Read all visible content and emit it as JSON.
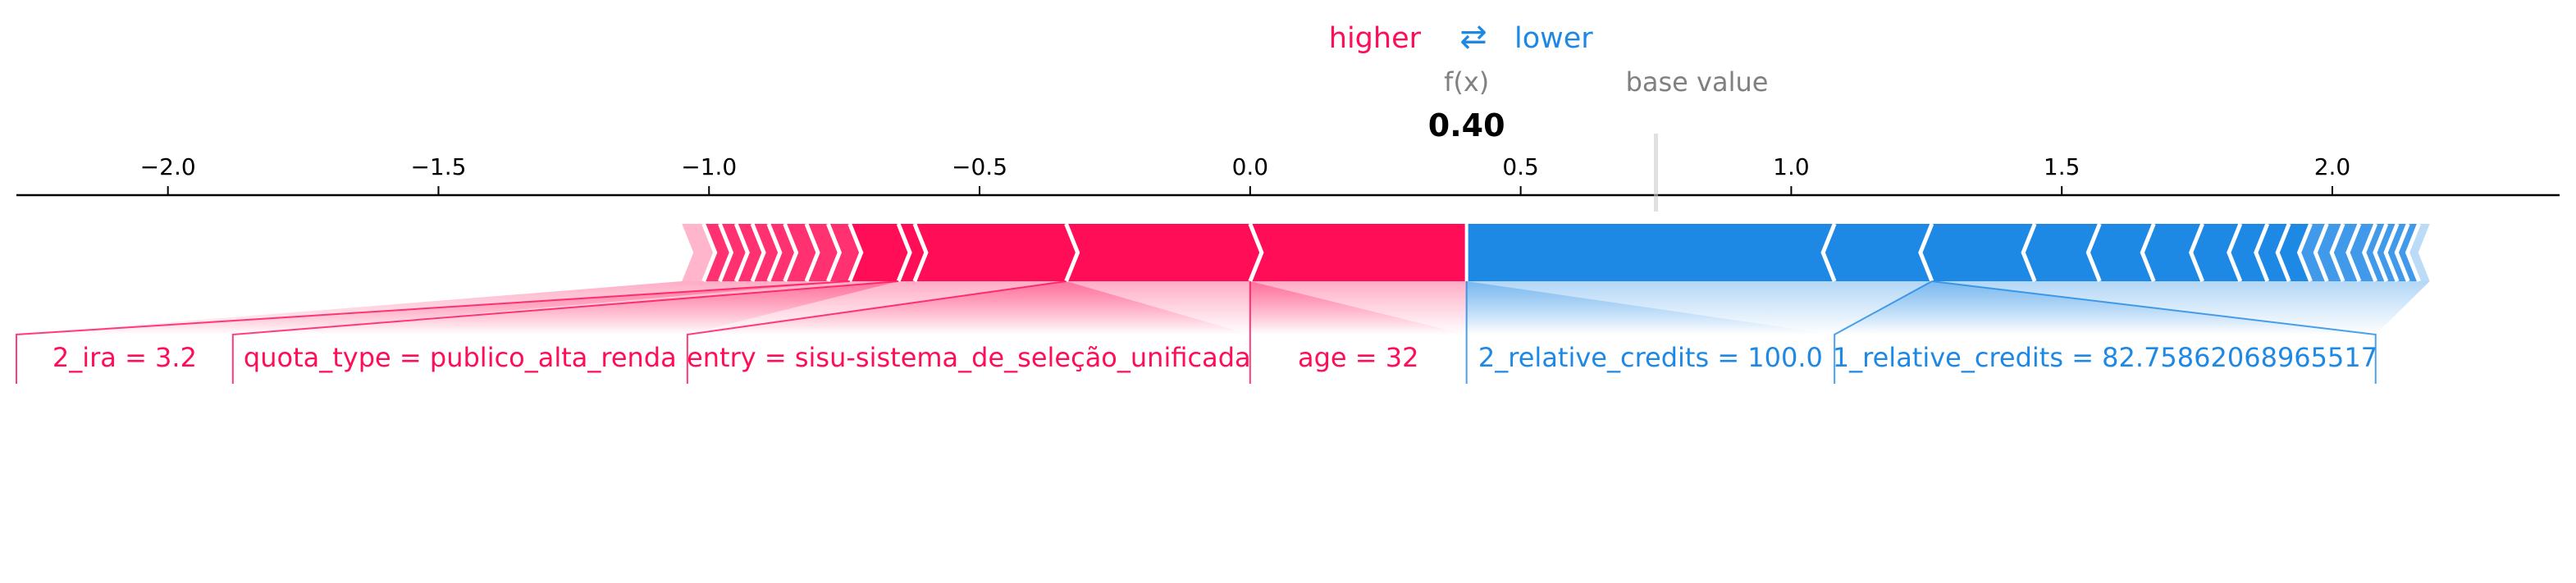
{
  "chart_data": {
    "type": "force",
    "legend": {
      "higher_label": "higher",
      "lower_label": "lower",
      "arrow_glyph": "⇄",
      "higher_color": "#ff0d57",
      "lower_color": "#1e88e5"
    },
    "output": {
      "label": "f(x)",
      "value": 0.4,
      "value_text": "0.40"
    },
    "base": {
      "label": "base value",
      "value": 0.75
    },
    "x_axis": {
      "ticks": [
        -2.0,
        -1.5,
        -1.0,
        -0.5,
        0.0,
        0.5,
        1.0,
        1.5,
        2.0
      ],
      "tick_labels": [
        "−2.0",
        "−1.5",
        "−1.0",
        "−0.5",
        "0.0",
        "0.5",
        "1.0",
        "1.5",
        "2.0"
      ],
      "xlim": [
        -2.28,
        2.42
      ]
    },
    "positive_segments": [
      -1.05,
      -1.01,
      -0.98,
      -0.95,
      -0.92,
      -0.89,
      -0.86,
      -0.82,
      -0.78,
      -0.74,
      -0.65,
      -0.62,
      -0.34,
      0.0,
      0.4
    ],
    "negative_segments": [
      0.4,
      1.08,
      1.26,
      1.45,
      1.57,
      1.67,
      1.76,
      1.83,
      1.88,
      1.92,
      1.96,
      1.99,
      2.02,
      2.05,
      2.08,
      2.1,
      2.12,
      2.14,
      2.16,
      2.18
    ],
    "positive_labels": [
      {
        "text": "2_ira = 3.2",
        "anchor": -0.74,
        "span": [
          -2.28,
          -1.88
        ]
      },
      {
        "text": "quota_type = publico_alta_renda",
        "anchor": -0.65,
        "span": [
          -1.88,
          -1.04
        ]
      },
      {
        "text": "entry = sisu-sistema_de_seleção_unificada",
        "anchor": -0.34,
        "span": [
          -1.04,
          0.0
        ]
      },
      {
        "text": "age = 32",
        "anchor": 0.0,
        "span": [
          0.0,
          0.4
        ]
      }
    ],
    "negative_labels": [
      {
        "text": "2_relative_credits = 100.0",
        "anchor": 0.4,
        "span": [
          0.4,
          1.08
        ]
      },
      {
        "text": "1_relative_credits = 82.75862068965517",
        "anchor": 1.26,
        "span": [
          1.08,
          2.08
        ]
      }
    ]
  }
}
